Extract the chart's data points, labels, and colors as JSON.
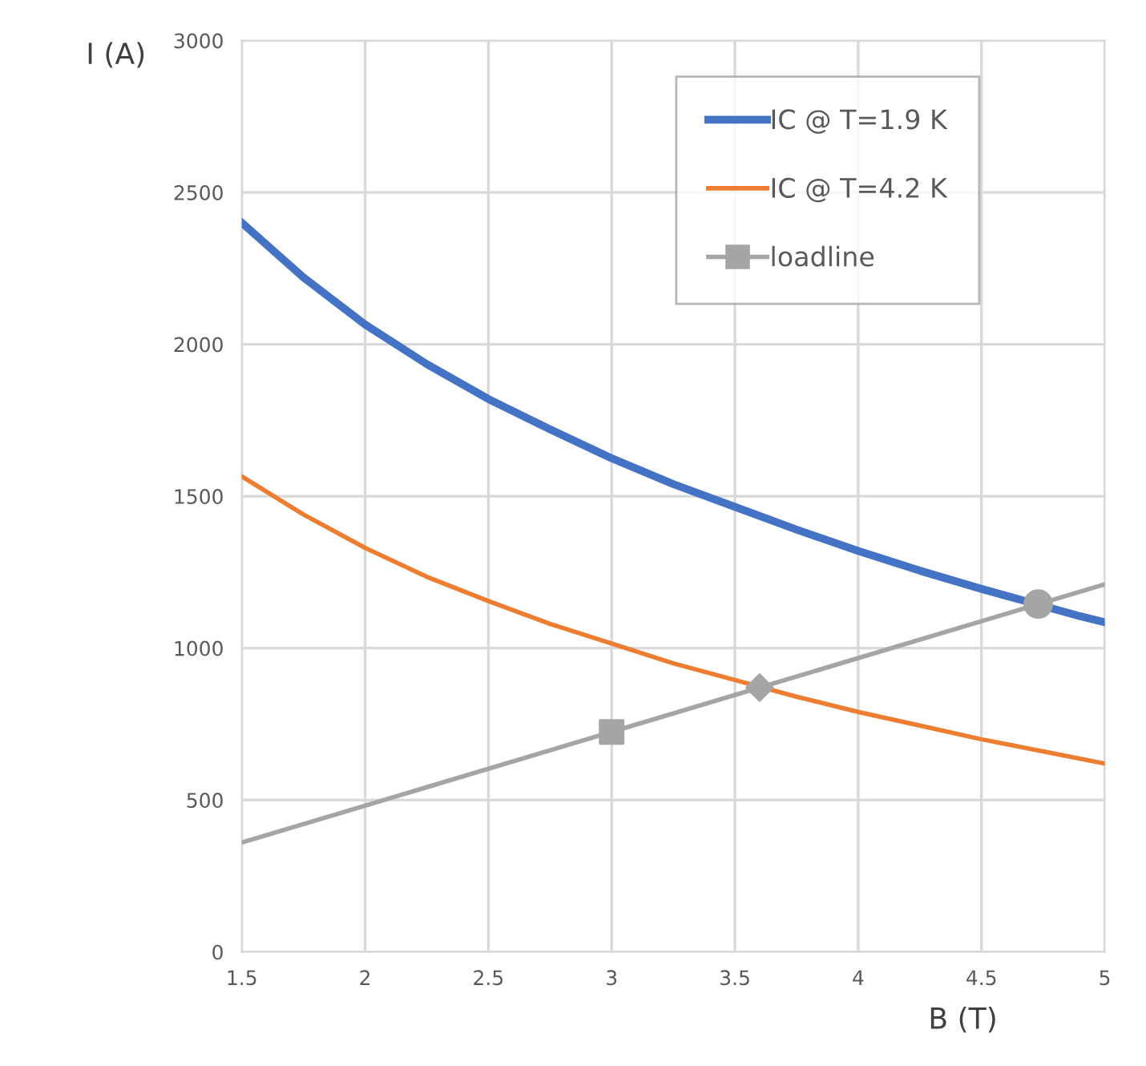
{
  "chart_data": {
    "type": "line",
    "xlabel": "B (T)",
    "ylabel": "I (A)",
    "xlim": [
      1.5,
      5
    ],
    "xticks": [
      1.5,
      2,
      2.5,
      3,
      3.5,
      4,
      4.5,
      5
    ],
    "ylim": [
      0,
      3000
    ],
    "yticks": [
      0,
      500,
      1000,
      1500,
      2000,
      2500,
      3000
    ],
    "grid": true,
    "legend": "top right",
    "series": [
      {
        "name": "IC @ T=1.9 K",
        "color": "#4472c4",
        "x": [
          1.5,
          1.75,
          2,
          2.25,
          2.5,
          2.75,
          3,
          3.25,
          3.5,
          3.75,
          4,
          4.25,
          4.5,
          4.9,
          5
        ],
        "values": [
          2400,
          2220,
          2065,
          1935,
          1820,
          1720,
          1625,
          1540,
          1465,
          1390,
          1320,
          1255,
          1195,
          1105,
          1085
        ],
        "marker": "none"
      },
      {
        "name": "IC @ T=4.2 K",
        "color": "#ed7d31",
        "x": [
          1.5,
          1.75,
          2,
          2.25,
          2.5,
          2.75,
          3,
          3.25,
          3.5,
          3.75,
          4,
          4.25,
          4.5,
          4.75,
          5
        ],
        "values": [
          1565,
          1440,
          1330,
          1235,
          1155,
          1080,
          1015,
          950,
          895,
          840,
          790,
          745,
          700,
          660,
          620
        ],
        "marker": "none"
      },
      {
        "name": "loadline",
        "color": "#a5a5a5",
        "x": [
          1.5,
          5
        ],
        "values": [
          360,
          1210
        ],
        "marker": "none"
      },
      {
        "type": "scatter",
        "color": "#a5a5a5",
        "x": [
          3
        ],
        "values": [
          724
        ],
        "marker": "square"
      },
      {
        "type": "scatter",
        "color": "#a5a5a5",
        "x": [
          3.6
        ],
        "values": [
          870
        ],
        "marker": "diamond"
      },
      {
        "type": "scatter",
        "color": "#a5a5a5",
        "x": [
          4.73
        ],
        "values": [
          1145
        ],
        "marker": "circle"
      }
    ]
  }
}
